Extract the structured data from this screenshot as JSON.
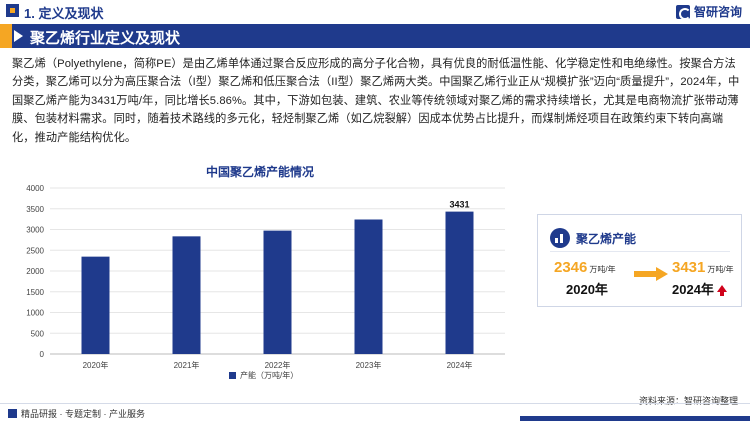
{
  "header": {
    "section_title": "1. 定义及现状",
    "brand_name": "智研咨询"
  },
  "banner": {
    "title": "聚乙烯行业定义及现状"
  },
  "intro": {
    "text": "聚乙烯（Polyethylene，简称PE）是由乙烯单体通过聚合反应形成的高分子化合物，具有优良的耐低温性能、化学稳定性和电绝缘性。按聚合方法分类，聚乙烯可以分为高压聚合法（I型）聚乙烯和低压聚合法（II型）聚乙烯两大类。中国聚乙烯行业正从“规模扩张”迈向“质量提升”，2024年，中国聚乙烯产能为3431万吨/年，同比增长5.86%。其中，下游如包装、建筑、农业等传统领域对聚乙烯的需求持续增长，尤其是电商物流扩张带动薄膜、包装材料需求。同时，随着技术路线的多元化，轻烃制聚乙烯（如乙烷裂解）因成本优势占比提升，而煤制烯烃项目在政策约束下转向高端化，推动产能结构优化。"
  },
  "chart_data": {
    "type": "bar",
    "title": "中国聚乙烯产能情况",
    "categories": [
      "2020年",
      "2021年",
      "2022年",
      "2023年",
      "2024年"
    ],
    "series": [
      {
        "name": "产能（万吨/年）",
        "values": [
          2346,
          2835,
          2973,
          3241,
          3431
        ],
        "color": "#1f3a8c"
      }
    ],
    "data_labels": [
      null,
      null,
      null,
      null,
      "3431"
    ],
    "ylim": [
      0,
      4000
    ],
    "yticks": [
      "0",
      "500",
      "1000",
      "1500",
      "2000",
      "2500",
      "3000",
      "3500",
      "4000"
    ],
    "grid": true,
    "legend_position": "bottom"
  },
  "card": {
    "title": "聚乙烯产能",
    "from_value": "2346",
    "from_unit": "万吨/年",
    "from_year": "2020年",
    "to_value": "3431",
    "to_unit": "万吨/年",
    "to_year": "2024年",
    "icon": "bar-chart-icon",
    "trend_icon": "up-arrow-icon",
    "accent_color": "#f5a623",
    "trend_color": "#d0021b"
  },
  "footer": {
    "tagline": "精品研报 · 专题定制 · 产业服务",
    "source": "资料来源：智研咨询整理"
  },
  "colors": {
    "primary": "#1f3a8c",
    "accent": "#f5a623"
  }
}
